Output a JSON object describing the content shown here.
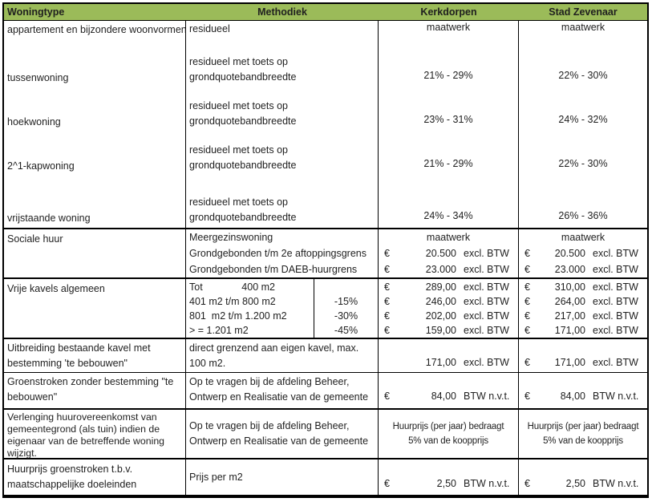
{
  "colors": {
    "header_bg": "#9bbb59",
    "border": "#000000",
    "text": "#1f1f1f"
  },
  "header": {
    "woningtype": "Woningtype",
    "methodiek": "Methodiek",
    "kerkdorpen": "Kerkdorpen",
    "stad_zevenaar": "Stad Zevenaar"
  },
  "woningtypen": {
    "rows": [
      {
        "label": "appartement en bijzondere woonvormen",
        "methodiek_1": "residueel",
        "methodiek_2": "",
        "kerkdorpen": "maatwerk",
        "stad": "maatwerk"
      },
      {
        "label": "tussenwoning",
        "methodiek_1": "residueel met toets op",
        "methodiek_2": "grondquotebandbreedte",
        "kerkdorpen": "21% - 29%",
        "stad": "22% - 30%"
      },
      {
        "label": "hoekwoning",
        "methodiek_1": "residueel met toets op",
        "methodiek_2": "grondquotebandbreedte",
        "kerkdorpen": "23% - 31%",
        "stad": "24% - 32%"
      },
      {
        "label": "2^1-kapwoning",
        "methodiek_1": "residueel met toets op",
        "methodiek_2": "grondquotebandbreedte",
        "kerkdorpen": "21% - 29%",
        "stad": "22% - 30%"
      },
      {
        "label": "vrijstaande woning",
        "methodiek_1": "residueel met toets op",
        "methodiek_2": "grondquotebandbreedte",
        "kerkdorpen": "24% - 34%",
        "stad": "26% - 36%"
      }
    ]
  },
  "sociale_huur": {
    "label": "Sociale huur",
    "methodiek": [
      "Meergezinswoning",
      "Grondgebonden t/m 2e aftoppingsgrens",
      "Grondgebonden t/m DAEB-huurgrens"
    ],
    "kerkdorpen": {
      "r1": "maatwerk",
      "r2": {
        "cur": "€",
        "amount": "20.500",
        "suffix": "excl. BTW"
      },
      "r3": {
        "cur": "€",
        "amount": "23.000",
        "suffix": "excl. BTW"
      }
    },
    "stad": {
      "r1": "maatwerk",
      "r2": {
        "cur": "€",
        "amount": "20.500",
        "suffix": "excl. BTW"
      },
      "r3": {
        "cur": "€",
        "amount": "23.000",
        "suffix": "excl. BTW"
      }
    }
  },
  "vrije_kavels": {
    "label": "Vrije kavels algemeen",
    "sizes": [
      "Tot              400 m2",
      "401 m2 t/m 800 m2",
      "801  m2 t/m 1.200 m2",
      "> = 1.201 m2"
    ],
    "discounts": [
      "",
      "-15%",
      "-30%",
      "-45%"
    ],
    "kerkdorpen": [
      {
        "cur": "€",
        "amount": "289,00",
        "suffix": "excl. BTW"
      },
      {
        "cur": "€",
        "amount": "246,00",
        "suffix": "excl. BTW"
      },
      {
        "cur": "€",
        "amount": "202,00",
        "suffix": "excl. BTW"
      },
      {
        "cur": "€",
        "amount": "159,00",
        "suffix": "excl. BTW"
      }
    ],
    "stad": [
      {
        "cur": "€",
        "amount": "310,00",
        "suffix": "excl. BTW"
      },
      {
        "cur": "€",
        "amount": "264,00",
        "suffix": "excl. BTW"
      },
      {
        "cur": "€",
        "amount": "217,00",
        "suffix": "excl. BTW"
      },
      {
        "cur": "€",
        "amount": "171,00",
        "suffix": "excl. BTW"
      }
    ]
  },
  "uitbreiding": {
    "label_1": "Uitbreiding bestaande kavel met",
    "label_2": "bestemming 'te bebouwen\"",
    "methodiek": "direct grenzend aan eigen kavel, max. 100 m2.",
    "kerkdorpen": {
      "cur": "",
      "amount": "171,00",
      "suffix": "excl. BTW"
    },
    "stad": {
      "cur": "€",
      "amount": "171,00",
      "suffix": "excl. BTW"
    }
  },
  "groenstroken": {
    "label_1": "Groenstroken zonder bestemming \"te",
    "label_2": "bebouwen\"",
    "methodiek_1": "Op te vragen bij de afdeling Beheer,",
    "methodiek_2": "Ontwerp en Realisatie van de gemeente",
    "kerkdorpen": {
      "cur": "€",
      "amount": "84,00",
      "suffix": "BTW n.v.t."
    },
    "stad": {
      "cur": "€",
      "amount": "84,00",
      "suffix": "BTW n.v.t."
    }
  },
  "verlenging": {
    "label_1": "Verlenging huurovereenkomst van",
    "label_2": "gemeentegrond (als tuin) indien de",
    "label_3": "eigenaar van de betreffende woning",
    "label_4": "wijzigt.",
    "methodiek_1": "Op te vragen bij de afdeling Beheer,",
    "methodiek_2": "Ontwerp en Realisatie van de gemeente",
    "kerkdorpen_1": "Huurprijs (per jaar) bedraagt",
    "kerkdorpen_2": "5% van de koopprijs",
    "stad_1": "Huurprijs (per jaar) bedraagt",
    "stad_2": "5% van de koopprijs"
  },
  "huurprijs_groenstroken": {
    "label_1": "Huurprijs groenstroken t.b.v.",
    "label_2": "maatschappelijke doeleinden",
    "methodiek": "Prijs per m2",
    "kerkdorpen": {
      "cur": "€",
      "amount": "2,50",
      "suffix": "BTW n.v.t."
    },
    "stad": {
      "cur": "€",
      "amount": "2,50",
      "suffix": "BTW n.v.t."
    }
  }
}
